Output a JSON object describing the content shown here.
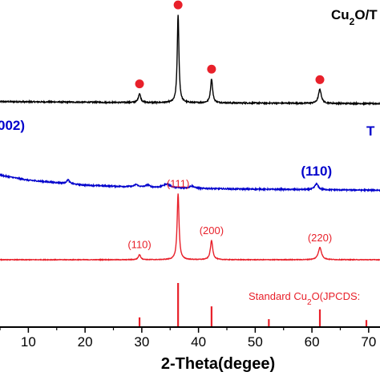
{
  "chart_data": {
    "type": "line",
    "xlabel": "2-Theta(degee)",
    "xlim": [
      5,
      72
    ],
    "ticks": [
      {
        "value": 10,
        "label": "10"
      },
      {
        "value": 20,
        "label": "20"
      },
      {
        "value": 30,
        "label": "30"
      },
      {
        "value": 40,
        "label": "40"
      },
      {
        "value": 50,
        "label": "50"
      },
      {
        "value": 60,
        "label": "60"
      },
      {
        "value": 70,
        "label": "70"
      }
    ],
    "grid": false,
    "colors": {
      "cu2o_tio2": "#000000",
      "tio2": "#0000cc",
      "cu2o": "#e8202a",
      "standard": "#e8202a",
      "marker": "#e8202a"
    },
    "series": [
      {
        "key": "cu2o_tio2",
        "name": "Cu2O/T",
        "baseline": 0.8,
        "noise": 0.006,
        "drift": [
          [
            5,
            0.005
          ],
          [
            30,
            0.0
          ],
          [
            72,
            -0.005
          ]
        ],
        "peaks": [
          {
            "x": 29.6,
            "height": 0.045,
            "width": 0.25
          },
          {
            "x": 36.4,
            "height": 0.44,
            "width": 0.18
          },
          {
            "x": 42.3,
            "height": 0.12,
            "width": 0.22
          },
          {
            "x": 61.4,
            "height": 0.07,
            "width": 0.3
          }
        ],
        "markers": [
          29.6,
          36.4,
          42.3,
          61.4
        ]
      },
      {
        "key": "tio2",
        "name": "T",
        "baseline": 0.37,
        "noise": 0.006,
        "drift": [
          [
            5,
            0.07
          ],
          [
            10,
            0.045
          ],
          [
            20,
            0.02
          ],
          [
            35,
            0.005
          ],
          [
            50,
            0.0
          ],
          [
            72,
            -0.005
          ]
        ],
        "peaks": [
          {
            "x": 17.0,
            "height": 0.02,
            "width": 0.3
          },
          {
            "x": 29.0,
            "height": 0.012,
            "width": 0.4
          },
          {
            "x": 31.0,
            "height": 0.012,
            "width": 0.4
          },
          {
            "x": 34.4,
            "height": 0.02,
            "width": 0.8
          },
          {
            "x": 38.8,
            "height": 0.012,
            "width": 0.5
          },
          {
            "x": 60.8,
            "height": 0.03,
            "width": 0.35
          }
        ]
      },
      {
        "key": "cu2o",
        "name": "Cu2O",
        "baseline": 0.0,
        "noise": 0.003,
        "drift": [
          [
            5,
            0.0
          ],
          [
            72,
            0.0
          ]
        ],
        "peaks": [
          {
            "x": 29.6,
            "height": 0.025,
            "width": 0.25
          },
          {
            "x": 36.4,
            "height": 0.33,
            "width": 0.2
          },
          {
            "x": 42.3,
            "height": 0.095,
            "width": 0.25
          },
          {
            "x": 61.4,
            "height": 0.06,
            "width": 0.35
          }
        ]
      }
    ],
    "peak_labels": [
      {
        "series": "cu2o",
        "x": 29.6,
        "text": "(110)"
      },
      {
        "series": "cu2o",
        "x": 36.4,
        "text": "(111)"
      },
      {
        "series": "cu2o",
        "x": 42.3,
        "text": "(200)"
      },
      {
        "series": "cu2o",
        "x": 61.4,
        "text": "(220)"
      },
      {
        "series": "tio2",
        "x": 60.8,
        "text": "(110)"
      },
      {
        "series": "tio2",
        "x": 0,
        "text": "002)"
      }
    ],
    "standard_reference": {
      "label": "Standard Cu2O(JPCDS:",
      "lines": [
        {
          "x": 29.6,
          "intensity": 0.22
        },
        {
          "x": 36.4,
          "intensity": 1.0
        },
        {
          "x": 42.3,
          "intensity": 0.47
        },
        {
          "x": 52.4,
          "intensity": 0.18
        },
        {
          "x": 61.4,
          "intensity": 0.4
        },
        {
          "x": 69.6,
          "intensity": 0.16
        }
      ]
    }
  }
}
